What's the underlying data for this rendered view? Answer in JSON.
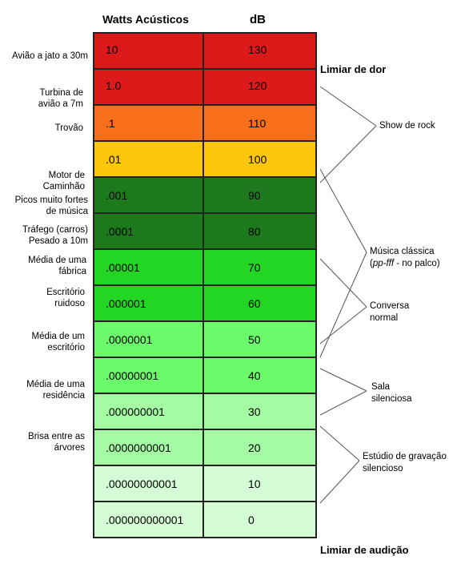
{
  "headers": {
    "watts": "Watts Acústicos",
    "db": "dB"
  },
  "rows": [
    {
      "watts": "10",
      "db": "130",
      "color": "#dd1a1a"
    },
    {
      "watts": "1.0",
      "db": "120",
      "color": "#dd1a1a"
    },
    {
      "watts": ".1",
      "db": "110",
      "color": "#f8701c"
    },
    {
      "watts": ".01",
      "db": "100",
      "color": "#fdc60b"
    },
    {
      "watts": ".001",
      "db": "90",
      "color": "#1c7a1c"
    },
    {
      "watts": ".0001",
      "db": "80",
      "color": "#1c7a1c"
    },
    {
      "watts": ".00001",
      "db": "70",
      "color": "#23d623"
    },
    {
      "watts": ".000001",
      "db": "60",
      "color": "#23d623"
    },
    {
      "watts": ".0000001",
      "db": "50",
      "color": "#6afa6a"
    },
    {
      "watts": ".00000001",
      "db": "40",
      "color": "#6afa6a"
    },
    {
      "watts": ".000000001",
      "db": "30",
      "color": "#a4fba4"
    },
    {
      "watts": ".0000000001",
      "db": "20",
      "color": "#a4fba4"
    },
    {
      "watts": ".00000000001",
      "db": "10",
      "color": "#d5fdd5"
    },
    {
      "watts": ".000000000001",
      "db": "0",
      "color": "#d5fdd5"
    }
  ],
  "left_labels": {
    "aviao_jato": "Avião a jato a 30m",
    "turbina": "Turbina de avião a 7m",
    "trovao": "Trovão",
    "motor": "Motor de Caminhão",
    "picos": "Picos muito fortes de música",
    "trafego": "Tráfego (carros) Pesado a 10m",
    "fabrica": "Média de uma fábrica",
    "escritorio_ruidoso": "Escritório ruidoso",
    "media_escritorio": "Média de um escritório",
    "residencia": "Média de uma residência",
    "brisa": "Brisa entre as árvores"
  },
  "thresholds": {
    "dor": "Limiar de dor",
    "audicao": "Limiar de audição"
  },
  "right_labels": {
    "show_rock": "Show de rock",
    "musica_classica_1": "Música clássica",
    "musica_classica_pp": "pp-fff",
    "musica_classica_rest": " -  no palco)",
    "conversa": "Conversa normal",
    "sala": "Sala silenciosa",
    "estudio": "Estúdio de gravação silencioso"
  }
}
